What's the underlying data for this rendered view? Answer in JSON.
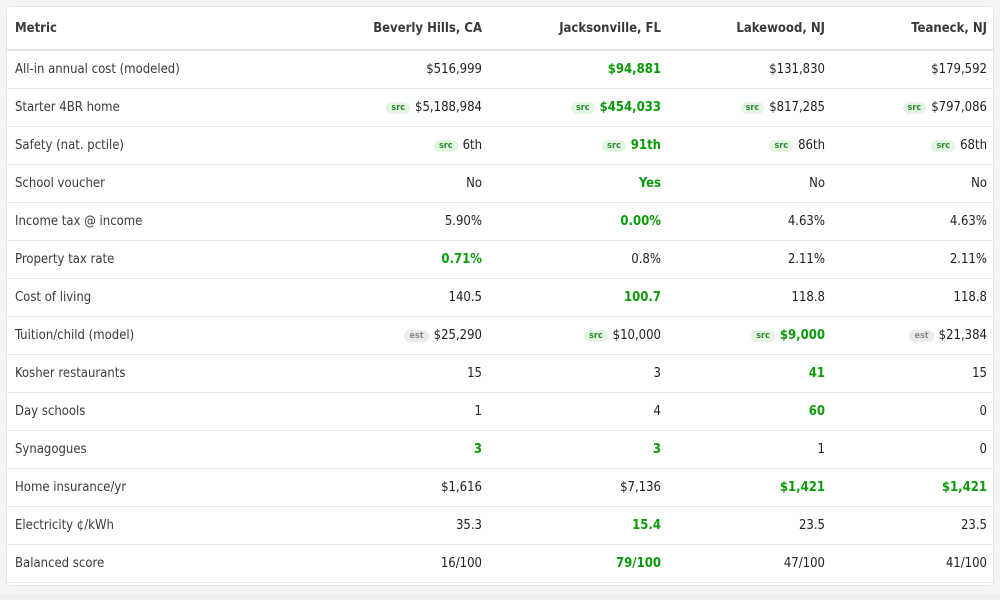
{
  "header": {
    "metric": "Metric",
    "cities": [
      "Beverly Hills, CA",
      "Jacksonville, FL",
      "Lakewood, NJ",
      "Teaneck, NJ"
    ]
  },
  "rows": [
    {
      "metric": "All-in annual cost (modeled)",
      "cells": [
        {
          "value": "$516,999",
          "best": false,
          "badge": ""
        },
        {
          "value": "$94,881",
          "best": true,
          "badge": ""
        },
        {
          "value": "$131,830",
          "best": false,
          "badge": ""
        },
        {
          "value": "$179,592",
          "best": false,
          "badge": ""
        }
      ]
    },
    {
      "metric": "Starter 4BR home",
      "cells": [
        {
          "value": "$5,188,984",
          "best": false,
          "badge": "src"
        },
        {
          "value": "$454,033",
          "best": true,
          "badge": "src"
        },
        {
          "value": "$817,285",
          "best": false,
          "badge": "src"
        },
        {
          "value": "$797,086",
          "best": false,
          "badge": "src"
        }
      ]
    },
    {
      "metric": "Safety (nat. pctile)",
      "cells": [
        {
          "value": "6th",
          "best": false,
          "badge": "src"
        },
        {
          "value": "91th",
          "best": true,
          "badge": "src"
        },
        {
          "value": "86th",
          "best": false,
          "badge": "src"
        },
        {
          "value": "68th",
          "best": false,
          "badge": "src"
        }
      ]
    },
    {
      "metric": "School voucher",
      "cells": [
        {
          "value": "No",
          "best": false,
          "badge": ""
        },
        {
          "value": "Yes",
          "best": true,
          "badge": ""
        },
        {
          "value": "No",
          "best": false,
          "badge": ""
        },
        {
          "value": "No",
          "best": false,
          "badge": ""
        }
      ]
    },
    {
      "metric": "Income tax @ income",
      "cells": [
        {
          "value": "5.90%",
          "best": false,
          "badge": ""
        },
        {
          "value": "0.00%",
          "best": true,
          "badge": ""
        },
        {
          "value": "4.63%",
          "best": false,
          "badge": ""
        },
        {
          "value": "4.63%",
          "best": false,
          "badge": ""
        }
      ]
    },
    {
      "metric": "Property tax rate",
      "cells": [
        {
          "value": "0.71%",
          "best": true,
          "badge": ""
        },
        {
          "value": "0.8%",
          "best": false,
          "badge": ""
        },
        {
          "value": "2.11%",
          "best": false,
          "badge": ""
        },
        {
          "value": "2.11%",
          "best": false,
          "badge": ""
        }
      ]
    },
    {
      "metric": "Cost of living",
      "cells": [
        {
          "value": "140.5",
          "best": false,
          "badge": ""
        },
        {
          "value": "100.7",
          "best": true,
          "badge": ""
        },
        {
          "value": "118.8",
          "best": false,
          "badge": ""
        },
        {
          "value": "118.8",
          "best": false,
          "badge": ""
        }
      ]
    },
    {
      "metric": "Tuition/child (model)",
      "cells": [
        {
          "value": "$25,290",
          "best": false,
          "badge": "est"
        },
        {
          "value": "$10,000",
          "best": false,
          "badge": "src"
        },
        {
          "value": "$9,000",
          "best": true,
          "badge": "src"
        },
        {
          "value": "$21,384",
          "best": false,
          "badge": "est"
        }
      ]
    },
    {
      "metric": "Kosher restaurants",
      "cells": [
        {
          "value": "15",
          "best": false,
          "badge": ""
        },
        {
          "value": "3",
          "best": false,
          "badge": ""
        },
        {
          "value": "41",
          "best": true,
          "badge": ""
        },
        {
          "value": "15",
          "best": false,
          "badge": ""
        }
      ]
    },
    {
      "metric": "Day schools",
      "cells": [
        {
          "value": "1",
          "best": false,
          "badge": ""
        },
        {
          "value": "4",
          "best": false,
          "badge": ""
        },
        {
          "value": "60",
          "best": true,
          "badge": ""
        },
        {
          "value": "0",
          "best": false,
          "badge": ""
        }
      ]
    },
    {
      "metric": "Synagogues",
      "cells": [
        {
          "value": "3",
          "best": true,
          "badge": ""
        },
        {
          "value": "3",
          "best": true,
          "badge": ""
        },
        {
          "value": "1",
          "best": false,
          "badge": ""
        },
        {
          "value": "0",
          "best": false,
          "badge": ""
        }
      ]
    },
    {
      "metric": "Home insurance/yr",
      "cells": [
        {
          "value": "$1,616",
          "best": false,
          "badge": ""
        },
        {
          "value": "$7,136",
          "best": false,
          "badge": ""
        },
        {
          "value": "$1,421",
          "best": true,
          "badge": ""
        },
        {
          "value": "$1,421",
          "best": true,
          "badge": ""
        }
      ]
    },
    {
      "metric": "Electricity ¢/kWh",
      "cells": [
        {
          "value": "35.3",
          "best": false,
          "badge": ""
        },
        {
          "value": "15.4",
          "best": true,
          "badge": ""
        },
        {
          "value": "23.5",
          "best": false,
          "badge": ""
        },
        {
          "value": "23.5",
          "best": false,
          "badge": ""
        }
      ]
    },
    {
      "metric": "Balanced score",
      "cells": [
        {
          "value": "16/100",
          "best": false,
          "badge": ""
        },
        {
          "value": "79/100",
          "best": true,
          "badge": ""
        },
        {
          "value": "47/100",
          "best": false,
          "badge": ""
        },
        {
          "value": "41/100",
          "best": false,
          "badge": ""
        }
      ]
    }
  ],
  "colors": {
    "best": "#0a9a0a",
    "badge_src_bg": "#e3f5e3",
    "badge_est_bg": "#ececec"
  }
}
